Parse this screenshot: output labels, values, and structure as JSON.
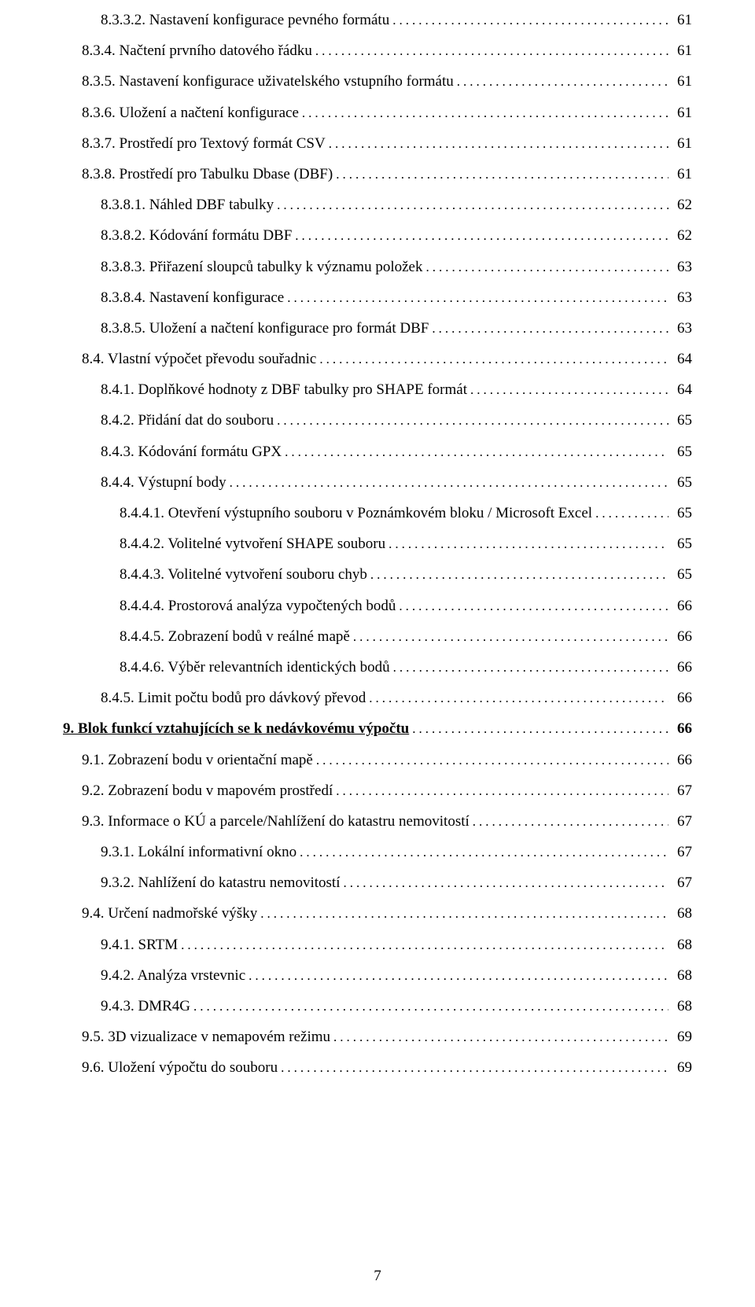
{
  "page_number": "7",
  "leader_char": ".",
  "entries": [
    {
      "indent": 2,
      "text": "8.3.3.2. Nastavení konfigurace pevného formátu",
      "page": "61",
      "bold": false,
      "underline": false
    },
    {
      "indent": 1,
      "text": "8.3.4. Načtení prvního datového řádku",
      "page": "61",
      "bold": false,
      "underline": false
    },
    {
      "indent": 1,
      "text": "8.3.5. Nastavení konfigurace uživatelského vstupního formátu",
      "page": "61",
      "bold": false,
      "underline": false
    },
    {
      "indent": 1,
      "text": "8.3.6. Uložení  a načtení  konfigurace",
      "page": "61",
      "bold": false,
      "underline": false
    },
    {
      "indent": 1,
      "text": "8.3.7. Prostředí pro Textový formát CSV",
      "page": "61",
      "bold": false,
      "underline": false
    },
    {
      "indent": 1,
      "text": "8.3.8. Prostředí pro Tabulku Dbase (DBF)",
      "page": "61",
      "bold": false,
      "underline": false
    },
    {
      "indent": 2,
      "text": "8.3.8.1. Náhled DBF tabulky",
      "page": "62",
      "bold": false,
      "underline": false
    },
    {
      "indent": 2,
      "text": "8.3.8.2. Kódování formátu DBF",
      "page": "62",
      "bold": false,
      "underline": false
    },
    {
      "indent": 2,
      "text": "8.3.8.3. Přiřazení sloupců tabulky k významu položek",
      "page": "63",
      "bold": false,
      "underline": false
    },
    {
      "indent": 2,
      "text": "8.3.8.4. Nastavení konfigurace",
      "page": "63",
      "bold": false,
      "underline": false
    },
    {
      "indent": 2,
      "text": "8.3.8.5. Uložení  a načtení  konfigurace pro formát DBF",
      "page": "63",
      "bold": false,
      "underline": false
    },
    {
      "indent": 1,
      "text": "8.4. Vlastní výpočet převodu souřadnic",
      "page": "64",
      "bold": false,
      "underline": false
    },
    {
      "indent": 2,
      "text": "8.4.1. Doplňkové hodnoty z DBF tabulky pro SHAPE formát",
      "page": "64",
      "bold": false,
      "underline": false
    },
    {
      "indent": 2,
      "text": "8.4.2. Přidání dat do souboru",
      "page": "65",
      "bold": false,
      "underline": false
    },
    {
      "indent": 2,
      "text": "8.4.3. Kódování formátu GPX",
      "page": "65",
      "bold": false,
      "underline": false
    },
    {
      "indent": 2,
      "text": "8.4.4. Výstupní body",
      "page": "65",
      "bold": false,
      "underline": false
    },
    {
      "indent": 3,
      "text": "8.4.4.1. Otevření výstupního souboru v Poznámkovém bloku / Microsoft Excel",
      "page": "65",
      "bold": false,
      "underline": false
    },
    {
      "indent": 3,
      "text": "8.4.4.2. Volitelné vytvoření SHAPE souboru",
      "page": "65",
      "bold": false,
      "underline": false
    },
    {
      "indent": 3,
      "text": "8.4.4.3. Volitelné vytvoření souboru chyb",
      "page": "65",
      "bold": false,
      "underline": false
    },
    {
      "indent": 3,
      "text": "8.4.4.4. Prostorová analýza vypočtených bodů",
      "page": "66",
      "bold": false,
      "underline": false
    },
    {
      "indent": 3,
      "text": "8.4.4.5. Zobrazení bodů v reálné mapě",
      "page": "66",
      "bold": false,
      "underline": false
    },
    {
      "indent": 3,
      "text": "8.4.4.6. Výběr relevantních identických bodů",
      "page": "66",
      "bold": false,
      "underline": false
    },
    {
      "indent": 2,
      "text": "8.4.5. Limit počtu bodů pro dávkový převod",
      "page": "66",
      "bold": false,
      "underline": false
    },
    {
      "indent": 0,
      "text": "9. Blok funkcí vztahujících se k nedávkovému výpočtu",
      "page": "66",
      "bold": true,
      "underline": true
    },
    {
      "indent": 1,
      "text": "9.1. Zobrazení bodu v orientační mapě",
      "page": "66",
      "bold": false,
      "underline": false
    },
    {
      "indent": 1,
      "text": "9.2. Zobrazení bodu v mapovém prostředí",
      "page": "67",
      "bold": false,
      "underline": false
    },
    {
      "indent": 1,
      "text": "9.3. Informace o KÚ a parcele/Nahlížení do katastru nemovitostí",
      "page": "67",
      "bold": false,
      "underline": false
    },
    {
      "indent": 2,
      "text": "9.3.1. Lokální informativní okno",
      "page": "67",
      "bold": false,
      "underline": false
    },
    {
      "indent": 2,
      "text": "9.3.2. Nahlížení do katastru nemovitostí",
      "page": "67",
      "bold": false,
      "underline": false
    },
    {
      "indent": 1,
      "text": "9.4. Určení nadmořské výšky",
      "page": "68",
      "bold": false,
      "underline": false
    },
    {
      "indent": 2,
      "text": "9.4.1. SRTM",
      "page": "68",
      "bold": false,
      "underline": false
    },
    {
      "indent": 2,
      "text": "9.4.2. Analýza vrstevnic",
      "page": "68",
      "bold": false,
      "underline": false
    },
    {
      "indent": 2,
      "text": "9.4.3. DMR4G",
      "page": "68",
      "bold": false,
      "underline": false
    },
    {
      "indent": 1,
      "text": "9.5. 3D vizualizace v nemapovém režimu",
      "page": "69",
      "bold": false,
      "underline": false
    },
    {
      "indent": 1,
      "text": "9.6. Uložení výpočtu do souboru",
      "page": "69",
      "bold": false,
      "underline": false
    }
  ]
}
